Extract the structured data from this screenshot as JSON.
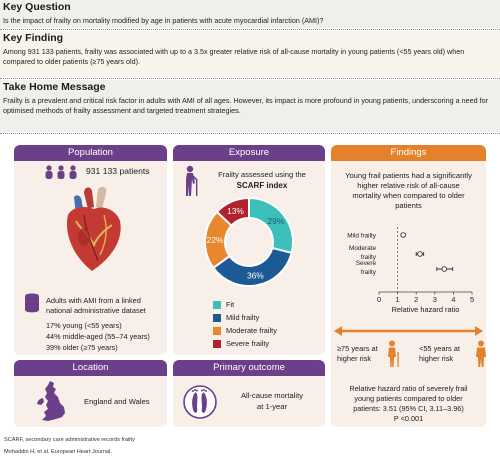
{
  "key_question": {
    "heading": "Key Question",
    "text": "Is the impact of frailty on mortality modified by age in patients with acute myocardial infarction (AMI)?"
  },
  "key_finding": {
    "heading": "Key Finding",
    "text": "Among 931 133 patients, frailty was associated with up to a 3.5x greater relative risk of all-cause mortality in young patients (<55 years old) when compared to older patients (≥75 years old)."
  },
  "take_home": {
    "heading": "Take Home Message",
    "text": "Frailty is a prevalent and critical risk factor in adults with AMI of all ages. However, its impact is more profound in young patients, underscoring a need for optimised methods of frailty assessment and targeted treatment strategies."
  },
  "population": {
    "title": "Population",
    "patients": "931 133 patients",
    "dataset": "Adults with AMI from a linked national administrative dataset",
    "groups": [
      "17% young (<55 years)",
      "44% middle-aged (55–74 years)",
      "39% older (≥75 years)"
    ]
  },
  "location": {
    "title": "Location",
    "text": "England and Wales"
  },
  "exposure": {
    "title": "Exposure",
    "line1": "Frailty assessed using the",
    "line2": "SCARF index",
    "donut": [
      {
        "label": "Fit",
        "pct": 29,
        "display": "29%",
        "color": "#3cbfbb"
      },
      {
        "label": "Mild frailty",
        "pct": 36,
        "display": "36%",
        "color": "#1d5a95"
      },
      {
        "label": "Moderate frailty",
        "pct": 22,
        "display": "22%",
        "color": "#e8872e"
      },
      {
        "label": "Severe frailty",
        "pct": 13,
        "display": "13%",
        "color": "#b1222c"
      }
    ]
  },
  "primary_outcome": {
    "title": "Primary outcome",
    "line1": "All-cause mortality",
    "line2": "at 1-year"
  },
  "findings": {
    "title": "Findings",
    "summary": [
      "Young frail patients had a significantly",
      "higher relative risk of all-cause",
      "mortality when compared to older",
      "patients"
    ],
    "forest": {
      "xlabel": "Relative hazard ratio",
      "ticks": [
        "0",
        "1",
        "2",
        "3",
        "4",
        "5"
      ],
      "xlim": [
        0,
        5
      ],
      "reference": 1,
      "rows": [
        {
          "label": [
            "Mild frailty"
          ],
          "hr": 1.3,
          "lo": 1.2,
          "hi": 1.4
        },
        {
          "label": [
            "Moderate",
            "frailty"
          ],
          "hr": 2.2,
          "lo": 2.0,
          "hi": 2.4
        },
        {
          "label": [
            "Severe",
            "frailty"
          ],
          "hr": 3.51,
          "lo": 3.11,
          "hi": 3.96
        }
      ]
    },
    "older_label": [
      "≥75 years at",
      "higher risk"
    ],
    "younger_label": [
      "<55 years at",
      "higher risk"
    ],
    "hr_text": [
      "Relative hazard ratio of severely frail",
      "young patients compared to older",
      "patients: 3.51 (95% CI, 3.11–3.96)",
      "P <0.001"
    ]
  },
  "footer": {
    "abbrev": "SCARF, secondary care administrative records frailty",
    "citation": "Mohaddin H, et al. European Heart Journal."
  }
}
